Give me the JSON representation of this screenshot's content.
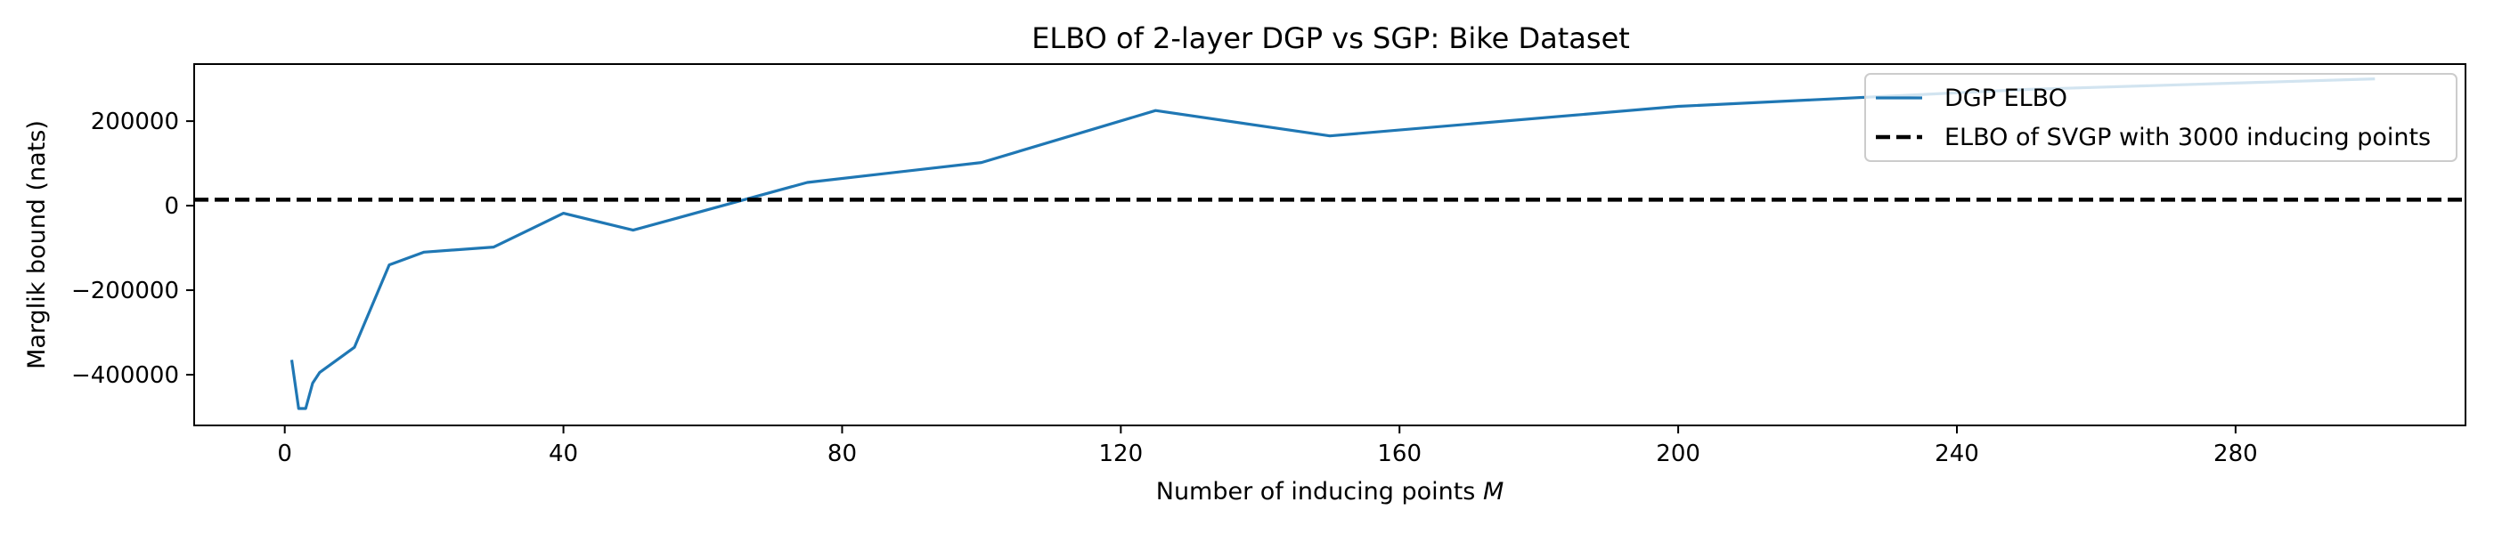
{
  "chart_data": {
    "type": "line",
    "title": "ELBO of 2-layer DGP vs SGP: Bike Dataset",
    "xlabel": "Number of inducing points M",
    "ylabel": "Marglik bound (nats)",
    "xlim": [
      -13,
      313
    ],
    "ylim": [
      -520000,
      335000
    ],
    "xticks": [
      0,
      40,
      80,
      120,
      160,
      200,
      240,
      280
    ],
    "xtick_labels": [
      "0",
      "40",
      "80",
      "120",
      "160",
      "200",
      "240",
      "280"
    ],
    "yticks": [
      -400000,
      -200000,
      0,
      200000
    ],
    "ytick_labels": [
      "−400000",
      "−200000",
      "0",
      "200000"
    ],
    "grid": false,
    "legend_position": "top-right",
    "series": [
      {
        "name": "DGP ELBO",
        "color": "#1f77b4",
        "style": "solid",
        "x": [
          1,
          2,
          3,
          4,
          5,
          10,
          15,
          20,
          30,
          40,
          50,
          75,
          100,
          125,
          150,
          200,
          250,
          300
        ],
        "y": [
          -365000,
          -480000,
          -480000,
          -420000,
          -395000,
          -335000,
          -140000,
          -110000,
          -98000,
          -18000,
          -58000,
          55000,
          102000,
          225000,
          165000,
          235000,
          275000,
          300000
        ]
      },
      {
        "name": "ELBO of SVGP with 3000 inducing points",
        "color": "#000000",
        "style": "dashed",
        "hline": 14000
      }
    ]
  }
}
